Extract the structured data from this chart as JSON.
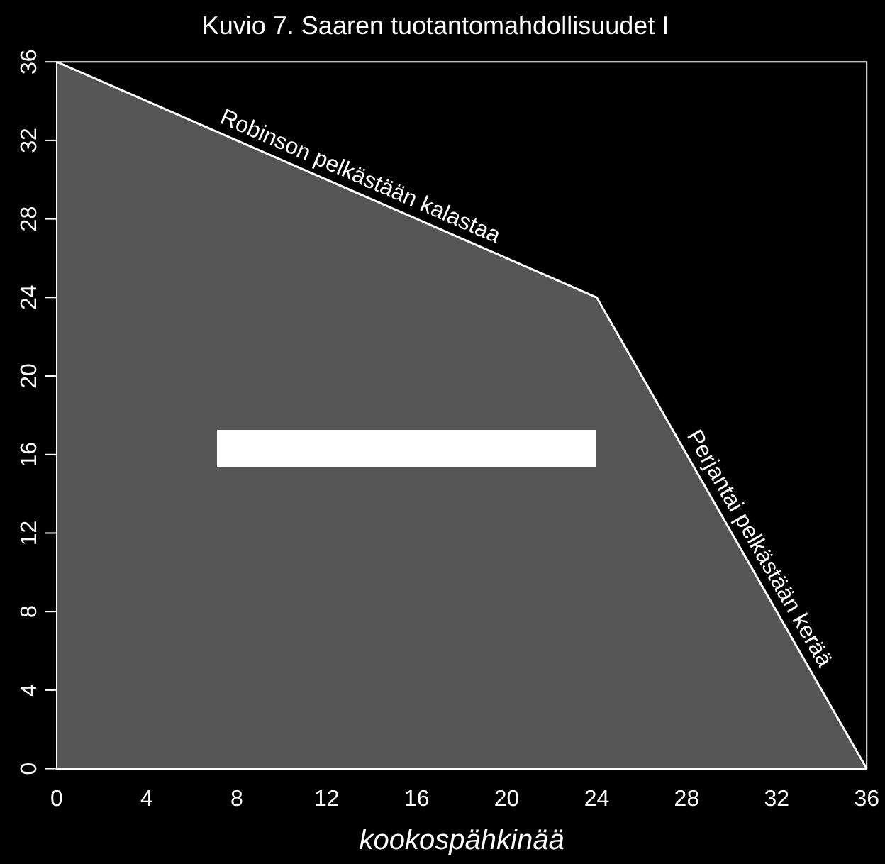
{
  "chart_data": {
    "type": "area",
    "title": "Kuvio 7. Saaren tuotantomahdollisuudet I",
    "xlabel": "kookospähkinää",
    "x": [
      0,
      24,
      36
    ],
    "series": [
      {
        "color": "#ffffff",
        "values": [
          36,
          24,
          0
        ]
      }
    ],
    "xlim": [
      0,
      36
    ],
    "ylim": [
      0,
      36
    ],
    "xticks": [
      0,
      4,
      8,
      12,
      16,
      20,
      24,
      28,
      32,
      36
    ],
    "yticks": [
      0,
      4,
      8,
      12,
      16,
      20,
      24,
      28,
      32,
      36
    ],
    "grid": false,
    "legend": false,
    "annotations": [
      "Robinson pelkästään kalastaa",
      "Perjantai pelkästään kerää"
    ]
  }
}
